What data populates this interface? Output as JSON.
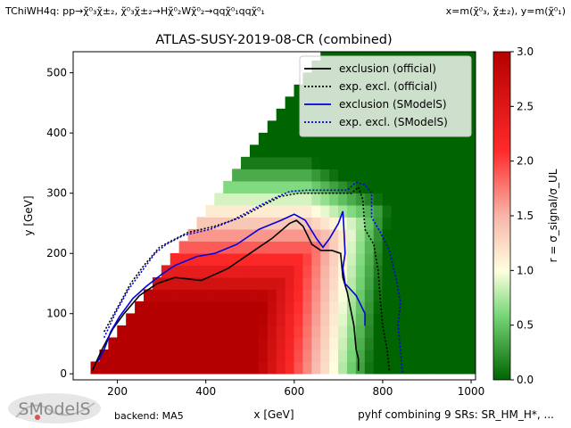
{
  "header": {
    "process": "TChiWH4q: pp→χ̃⁰₃χ̃±₂, χ̃⁰₃χ̃±₂→Hχ̃⁰₂Wχ̃⁰₂→qqχ̃⁰₁qqχ̃⁰₁",
    "axes_def": "x=m(χ̃⁰₃, χ̃±₂), y=m(χ̃⁰₁)"
  },
  "footer": {
    "backend": "backend: MA5",
    "combination": "pyhf combining 9 SRs: SR_HM_H*, ..."
  },
  "logo": {
    "text": "SModelS"
  },
  "colorbar": {
    "label": "r = σ_signal/σ_UL",
    "ticks": [
      "0.0",
      "0.5",
      "1.0",
      "1.5",
      "2.0",
      "2.5",
      "3.0"
    ],
    "colors": [
      "#006400",
      "#ffffe0",
      "#b40000"
    ]
  },
  "chart_data": {
    "type": "heatmap",
    "title": "ATLAS-SUSY-2019-08-CR (combined)",
    "xlabel": "x [GeV]",
    "ylabel": "y [GeV]",
    "xlim": [
      100,
      1010
    ],
    "ylim": [
      -10,
      535
    ],
    "xticks": [
      200,
      400,
      600,
      800,
      1000
    ],
    "yticks": [
      0,
      100,
      200,
      300,
      400,
      500
    ],
    "zlim": [
      0,
      3
    ],
    "legend_position": "top-right",
    "legend": [
      {
        "label": "exclusion (official)",
        "color": "#000000",
        "style": "solid"
      },
      {
        "label": "exp. excl. (official)",
        "color": "#000000",
        "style": "dotted"
      },
      {
        "label": "exclusion (SModelS)",
        "color": "#0000dd",
        "style": "solid"
      },
      {
        "label": "exp. excl. (SModelS)",
        "color": "#0000dd",
        "style": "dotted"
      }
    ],
    "curves": {
      "exclusion_official": [
        [
          143,
          5
        ],
        [
          165,
          40
        ],
        [
          190,
          75
        ],
        [
          215,
          100
        ],
        [
          250,
          130
        ],
        [
          290,
          150
        ],
        [
          330,
          160
        ],
        [
          390,
          155
        ],
        [
          450,
          175
        ],
        [
          500,
          200
        ],
        [
          550,
          225
        ],
        [
          590,
          250
        ],
        [
          605,
          255
        ],
        [
          620,
          245
        ],
        [
          640,
          215
        ],
        [
          660,
          205
        ],
        [
          685,
          205
        ],
        [
          705,
          200
        ],
        [
          710,
          160
        ],
        [
          720,
          135
        ],
        [
          735,
          80
        ],
        [
          740,
          40
        ],
        [
          745,
          25
        ],
        [
          745,
          5
        ]
      ],
      "exclusion_smodels": [
        [
          155,
          20
        ],
        [
          170,
          40
        ],
        [
          185,
          70
        ],
        [
          205,
          95
        ],
        [
          235,
          125
        ],
        [
          265,
          145
        ],
        [
          300,
          165
        ],
        [
          330,
          180
        ],
        [
          380,
          195
        ],
        [
          420,
          200
        ],
        [
          470,
          215
        ],
        [
          520,
          240
        ],
        [
          570,
          255
        ],
        [
          600,
          265
        ],
        [
          625,
          255
        ],
        [
          650,
          225
        ],
        [
          665,
          210
        ],
        [
          680,
          225
        ],
        [
          700,
          250
        ],
        [
          710,
          270
        ],
        [
          712,
          245
        ],
        [
          715,
          200
        ],
        [
          710,
          175
        ],
        [
          715,
          150
        ],
        [
          740,
          130
        ],
        [
          760,
          100
        ],
        [
          760,
          80
        ]
      ],
      "expected_official": [
        [
          170,
          70
        ],
        [
          200,
          110
        ],
        [
          230,
          150
        ],
        [
          260,
          180
        ],
        [
          295,
          210
        ],
        [
          320,
          220
        ],
        [
          360,
          235
        ],
        [
          420,
          245
        ],
        [
          480,
          260
        ],
        [
          530,
          280
        ],
        [
          570,
          295
        ],
        [
          610,
          300
        ],
        [
          660,
          300
        ],
        [
          700,
          300
        ],
        [
          730,
          300
        ],
        [
          745,
          310
        ],
        [
          755,
          290
        ],
        [
          760,
          240
        ],
        [
          780,
          215
        ],
        [
          790,
          170
        ],
        [
          795,
          120
        ],
        [
          800,
          80
        ],
        [
          810,
          40
        ],
        [
          815,
          5
        ]
      ],
      "expected_smodels": [
        [
          170,
          60
        ],
        [
          195,
          100
        ],
        [
          225,
          140
        ],
        [
          255,
          170
        ],
        [
          285,
          200
        ],
        [
          310,
          215
        ],
        [
          350,
          230
        ],
        [
          410,
          240
        ],
        [
          460,
          255
        ],
        [
          510,
          275
        ],
        [
          555,
          292
        ],
        [
          590,
          303
        ],
        [
          630,
          305
        ],
        [
          690,
          305
        ],
        [
          720,
          305
        ],
        [
          740,
          318
        ],
        [
          760,
          314
        ],
        [
          775,
          300
        ],
        [
          775,
          260
        ],
        [
          795,
          235
        ],
        [
          815,
          205
        ],
        [
          830,
          160
        ],
        [
          840,
          120
        ],
        [
          835,
          80
        ],
        [
          840,
          40
        ],
        [
          845,
          0
        ]
      ]
    }
  }
}
